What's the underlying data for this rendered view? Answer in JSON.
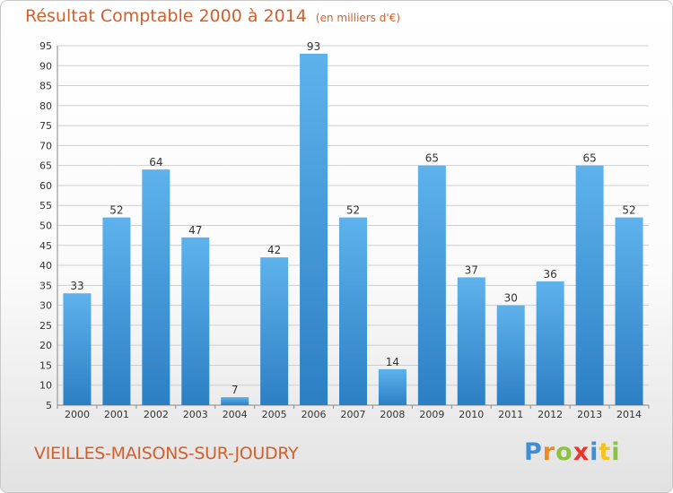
{
  "header": {
    "title": "Résultat Comptable 2000 à 2014",
    "unit": "(en milliers d'€)"
  },
  "footer": {
    "commune": "VIEILLES-MAISONS-SUR-JOUDRY",
    "logo_letters": [
      "P",
      "r",
      "o",
      "x",
      "i",
      "t",
      "i"
    ]
  },
  "colors": {
    "title": "#d35f2b",
    "bar_top": "#5eb2ec",
    "bar_bottom": "#2d7fc4",
    "grid": "#cfcfcf",
    "axis_text": "#333333"
  },
  "chart_data": {
    "type": "bar",
    "title": "Résultat Comptable 2000 à 2014",
    "subtitle": "(en milliers d'€)",
    "xlabel": "",
    "ylabel": "",
    "categories": [
      "2000",
      "2001",
      "2002",
      "2003",
      "2004",
      "2005",
      "2006",
      "2007",
      "2008",
      "2009",
      "2010",
      "2011",
      "2012",
      "2013",
      "2014"
    ],
    "values": [
      33,
      52,
      64,
      47,
      7,
      42,
      93,
      52,
      14,
      65,
      37,
      30,
      36,
      65,
      52
    ],
    "ylim": [
      5,
      95
    ],
    "yticks": [
      5,
      10,
      15,
      20,
      25,
      30,
      35,
      40,
      45,
      50,
      55,
      60,
      65,
      70,
      75,
      80,
      85,
      90,
      95
    ],
    "grid": true,
    "data_labels": true
  }
}
